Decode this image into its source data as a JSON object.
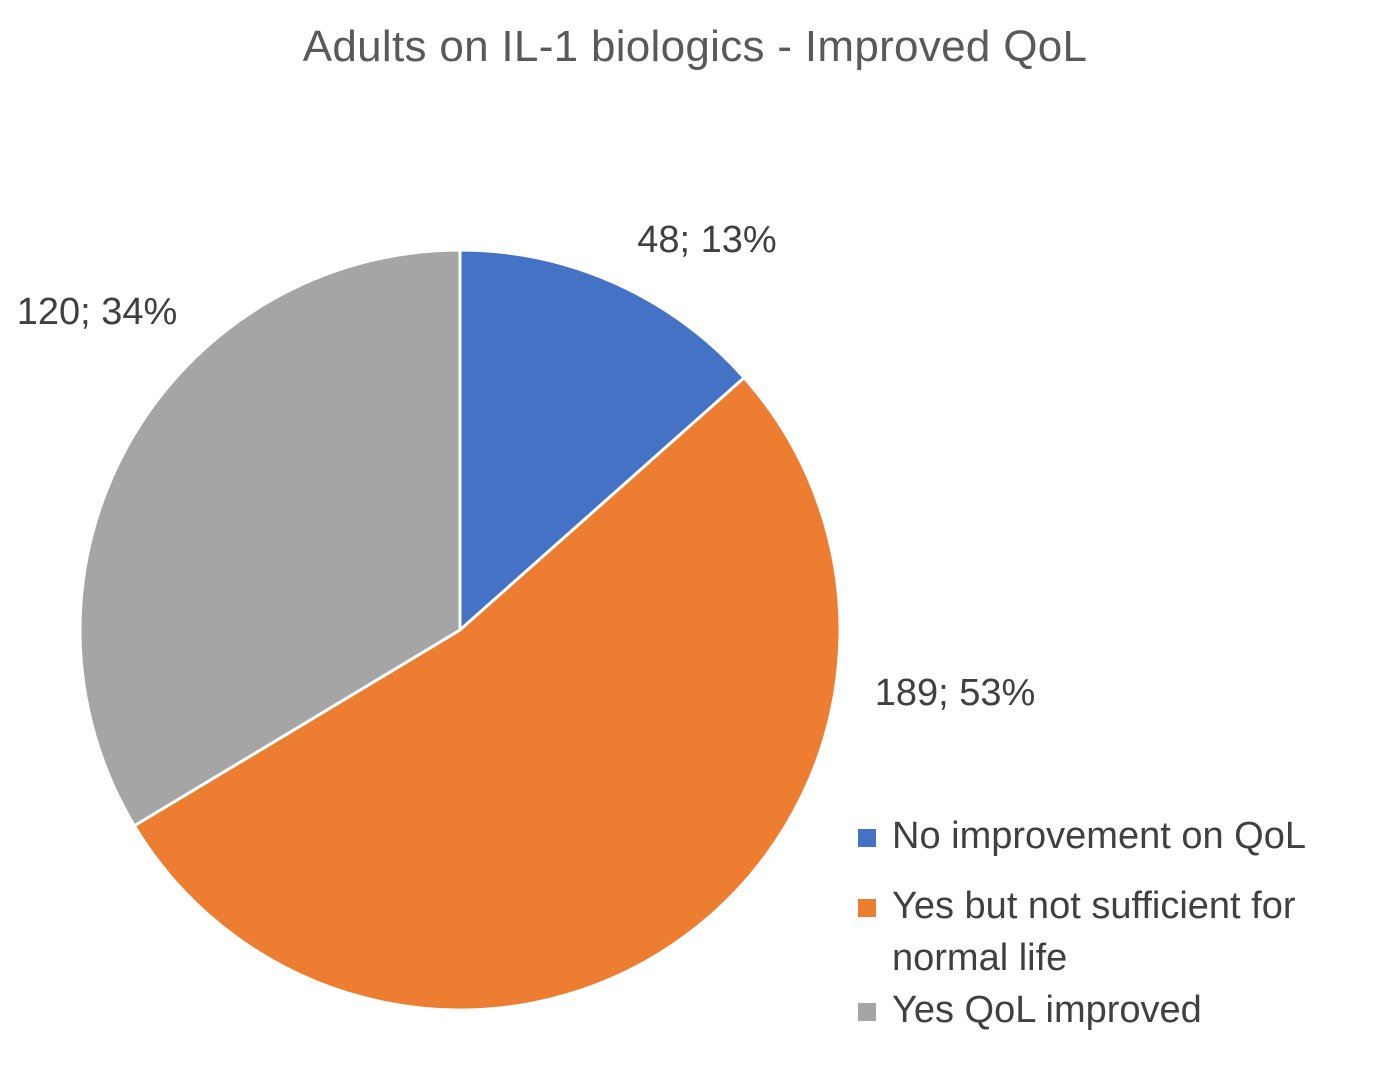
{
  "chart_data": {
    "type": "pie",
    "title": "Adults on IL-1 biologics - Improved QoL",
    "categories": [
      "No improvement on QoL",
      "Yes but not sufficient for normal life",
      "Yes QoL improved"
    ],
    "values": [
      48,
      189,
      120
    ],
    "percentages": [
      13,
      53,
      34
    ],
    "data_labels": [
      "48; 13%",
      "189; 53%",
      "120; 34%"
    ],
    "colors": [
      "#4472C4",
      "#ED7D31",
      "#A5A5A5"
    ],
    "start_angle": "12 o'clock",
    "direction": "clockwise",
    "legend_position": "bottom-right"
  }
}
